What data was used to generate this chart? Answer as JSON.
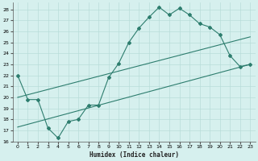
{
  "xlabel": "Humidex (Indice chaleur)",
  "line_color": "#2d7d6e",
  "bg_color": "#d6f0ee",
  "grid_color": "#b8ddd9",
  "xlim": [
    -0.5,
    23.5
  ],
  "ylim": [
    16,
    28.6
  ],
  "xticks": [
    0,
    1,
    2,
    3,
    4,
    5,
    6,
    7,
    8,
    9,
    10,
    11,
    12,
    13,
    14,
    15,
    16,
    17,
    18,
    19,
    20,
    21,
    22,
    23
  ],
  "yticks": [
    16,
    17,
    18,
    19,
    20,
    21,
    22,
    23,
    24,
    25,
    26,
    27,
    28
  ],
  "curve1_x": [
    0,
    1,
    2,
    3,
    4,
    5,
    6,
    7,
    8,
    9,
    10,
    11,
    12,
    13,
    14,
    15,
    16,
    17,
    18,
    19,
    20,
    21,
    22,
    23
  ],
  "curve1_y": [
    22,
    19.8,
    19.8,
    17.2,
    16.3,
    17.8,
    18.0,
    19.3,
    19.3,
    21.8,
    23.1,
    25.0,
    26.3,
    27.3,
    28.2,
    27.5,
    28.1,
    27.5,
    26.7,
    26.4,
    25.7,
    23.8,
    22.8,
    23.0
  ],
  "curve2_x": [
    0,
    23
  ],
  "curve2_y": [
    20.0,
    25.5
  ],
  "curve3_x": [
    0,
    23
  ],
  "curve3_y": [
    17.3,
    23.0
  ],
  "marker_symbol": "D",
  "marker_size": 2.0,
  "linewidth": 0.8
}
